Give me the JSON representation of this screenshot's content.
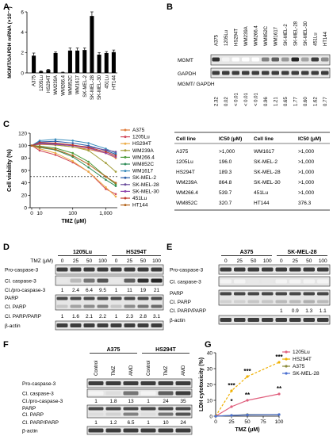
{
  "panels": {
    "A": {
      "letter": "A",
      "chart_data": {
        "type": "bar",
        "ylabel": "MGMT/GAPDH mRNA (×10⁻⁴)",
        "ylim": [
          0,
          6
        ],
        "yticks": [
          "0",
          "2",
          "4",
          "6"
        ],
        "categories": [
          "A375",
          "1205Lu",
          "HS294T",
          "WM239A",
          "WM266.4",
          "WM852C",
          "WM1617",
          "SK-MEL-2",
          "SK-MEL-28",
          "SK-MEL-30",
          "451Lu",
          "HT144"
        ],
        "values": [
          1.7,
          0.15,
          0.3,
          1.95,
          0.05,
          2.2,
          2.2,
          2.25,
          5.6,
          1.8,
          1.95,
          2.05
        ],
        "errors": [
          0.25,
          0.05,
          0.05,
          0.12,
          0.03,
          0.25,
          0.25,
          0.2,
          0.4,
          0.2,
          0.15,
          0.2
        ],
        "bar_color": "#000000"
      }
    },
    "B": {
      "letter": "B",
      "lanes": [
        "A375",
        "1205Lu",
        "HS294T",
        "WM239A",
        "WM266.4",
        "WM852C",
        "WM1617",
        "SK-MEL-2",
        "SK-MEL-28",
        "SK-MEL-30",
        "451Lu",
        "HT144"
      ],
      "row_labels": {
        "mgmt": "MGMT",
        "gapdh": "GAPDH",
        "ratio": "MGMT/ GAPDH"
      },
      "ratios": [
        "2.32",
        "0.02",
        "< 0.01",
        "< 0.01",
        "< 0.01",
        "0.96",
        "1.21",
        "0.65",
        "1.77",
        "0.60",
        "1.62",
        "0.77"
      ],
      "mgmt_intensity": [
        0.9,
        0.05,
        0.0,
        0.0,
        0.0,
        0.55,
        0.7,
        0.45,
        0.95,
        0.4,
        0.85,
        0.5
      ]
    },
    "C": {
      "letter": "C",
      "chart_data": {
        "type": "line",
        "xlabel": "TMZ (μM)",
        "ylabel": "Cell viability (%)",
        "xscale": "log",
        "xticks": [
          "0",
          "10",
          "100",
          "1,000"
        ],
        "yticks": [
          "0",
          "20",
          "40",
          "60",
          "80",
          "100",
          "120"
        ],
        "ylim": [
          0,
          120
        ],
        "x": [
          0,
          10,
          30,
          100,
          300,
          1000,
          2000
        ],
        "series": [
          {
            "name": "A375",
            "color": "#e07b39",
            "values": [
              100,
              102,
              101,
              98,
              94,
              88,
              80
            ]
          },
          {
            "name": "1205Lu",
            "color": "#d1495b",
            "values": [
              100,
              92,
              85,
              73,
              58,
              30,
              22
            ]
          },
          {
            "name": "HS294T",
            "color": "#edae49",
            "values": [
              100,
              95,
              88,
              75,
              58,
              33,
              18
            ]
          },
          {
            "name": "WM239A",
            "color": "#a39e3b",
            "values": [
              100,
              103,
              101,
              98,
              92,
              72,
              58
            ]
          },
          {
            "name": "WM266.4",
            "color": "#4d9b3a",
            "values": [
              100,
              99,
              96,
              88,
              74,
              50,
              38
            ]
          },
          {
            "name": "WM852C",
            "color": "#2e8b57",
            "values": [
              100,
              97,
              93,
              82,
              65,
              45,
              35
            ]
          },
          {
            "name": "WM1617",
            "color": "#3c8dbc",
            "values": [
              100,
              108,
              110,
              108,
              104,
              95,
              88
            ]
          },
          {
            "name": "SK-MEL-2",
            "color": "#2c5fa8",
            "values": [
              100,
              106,
              107,
              104,
              100,
              92,
              86
            ]
          },
          {
            "name": "SK-MEL-28",
            "color": "#6a4c9c",
            "values": [
              100,
              104,
              103,
              100,
              98,
              93,
              90
            ]
          },
          {
            "name": "SK-MEL-30",
            "color": "#8e44ad",
            "values": [
              100,
              103,
              102,
              100,
              96,
              88,
              82
            ]
          },
          {
            "name": "451Lu",
            "color": "#c0392b",
            "values": [
              100,
              105,
              104,
              101,
              97,
              90,
              84
            ]
          },
          {
            "name": "HT144",
            "color": "#b5651d",
            "values": [
              100,
              98,
              94,
              84,
              70,
              50,
              40
            ]
          }
        ]
      },
      "table": {
        "headers": [
          "Cell line",
          "IC50 (μM)",
          "Cell line",
          "IC50 (μM)"
        ],
        "rows": [
          [
            "A375",
            ">1,000",
            "WM1617",
            ">1,000"
          ],
          [
            "1205Lu",
            "196.0",
            "SK-MEL-2",
            ">1,000"
          ],
          [
            "HS294T",
            "189.3",
            "SK-MEL-28",
            ">1,000"
          ],
          [
            "WM239A",
            "864.8",
            "SK-MEL-30",
            ">1,000"
          ],
          [
            "WM266.4",
            "539.7",
            "451Lu",
            ">1,000"
          ],
          [
            "WM852C",
            "320.7",
            "HT144",
            "376.3"
          ]
        ]
      }
    },
    "D": {
      "letter": "D",
      "cell_lines": [
        "1205Lu",
        "HS294T"
      ],
      "tmz_label": "TMZ (μM)",
      "doses": [
        "0",
        "25",
        "50",
        "100",
        "0",
        "25",
        "50",
        "100"
      ],
      "rows": {
        "pro": "Pro-caspase-3",
        "cl": "Cl. caspase-3",
        "cl_ratio": "Cl./pro-caspase-3",
        "parp": "PARP",
        "clparp": "Cl. PARP",
        "parp_ratio": "Cl. PARP/PARP",
        "actin": "β-actin"
      },
      "casp_ratio_values": [
        "1",
        "2.4",
        "6.4",
        "9.5",
        "1",
        "11",
        "19",
        "21"
      ],
      "parp_ratio_values": [
        "1",
        "1.6",
        "2.1",
        "2.2",
        "1",
        "2.3",
        "2.8",
        "3.1"
      ],
      "cl_intensity": [
        0.1,
        0.3,
        0.6,
        0.75,
        0.1,
        0.7,
        0.9,
        0.95
      ]
    },
    "E": {
      "letter": "E",
      "cell_lines": [
        "A375",
        "SK-MEL-28"
      ],
      "doses": [
        "0",
        "25",
        "50",
        "100",
        "0",
        "25",
        "50",
        "100"
      ],
      "rows": {
        "pro": "Pro-caspase-3",
        "cl": "Cl. caspase-3",
        "parp": "PARP",
        "clparp": "Cl. PARP",
        "parp_ratio": "Cl. PARP/PARP",
        "actin": "β-actin"
      },
      "parp_ratio_values": [
        "",
        "",
        "",
        "",
        "1",
        "0.9",
        "1.3",
        "1.1"
      ]
    },
    "F": {
      "letter": "F",
      "cell_lines": [
        "A375",
        "HS294T"
      ],
      "treatments": [
        "Control",
        "TMZ",
        "AMD",
        "Control",
        "TMZ",
        "AMD"
      ],
      "rows": {
        "pro": "Pro-caspase-3",
        "cl": "Cl. caspase-3",
        "cl_ratio": "Cl./pro-caspase-3",
        "parp": "PARP",
        "clparp": "Cl. PARP",
        "parp_ratio": "Cl. PARP/PARP",
        "actin": "β-actin"
      },
      "casp_ratio_values": [
        "1",
        "1.8",
        "13",
        "1",
        "24",
        "35"
      ],
      "parp_ratio_values": [
        "1",
        "1.2",
        "6.5",
        "1",
        "10",
        "24"
      ]
    },
    "G": {
      "letter": "G",
      "chart_data": {
        "type": "line",
        "xlabel": "TMZ (μM)",
        "ylabel": "LDH cytotoxicity (%)",
        "x": [
          0,
          25,
          50,
          100
        ],
        "xticks": [
          "0",
          "25",
          "50",
          "75",
          "100"
        ],
        "yticks": [
          "0",
          "10",
          "20",
          "30",
          "40"
        ],
        "xlim": [
          0,
          100
        ],
        "ylim": [
          0,
          40
        ],
        "series": [
          {
            "name": "1205Lu",
            "color": "#e0607e",
            "values": [
              0,
              6,
              10,
              14
            ]
          },
          {
            "name": "HS294T",
            "color": "#f0b000",
            "values": [
              0,
              16,
              25,
              34
            ]
          },
          {
            "name": "A375",
            "color": "#8a8a3a",
            "values": [
              0,
              0.5,
              1,
              1
            ]
          },
          {
            "name": "SK-MEL-28",
            "color": "#4a6fd0",
            "values": [
              0,
              0.5,
              0.8,
              1
            ]
          }
        ],
        "annotations": [
          {
            "text": "***",
            "x": 25,
            "y": 18
          },
          {
            "text": "***",
            "x": 50,
            "y": 27
          },
          {
            "text": "***",
            "x": 100,
            "y": 36
          },
          {
            "text": "*",
            "x": 25,
            "y": 8
          },
          {
            "text": "**",
            "x": 50,
            "y": 12
          },
          {
            "text": "**",
            "x": 100,
            "y": 16
          }
        ]
      }
    }
  }
}
